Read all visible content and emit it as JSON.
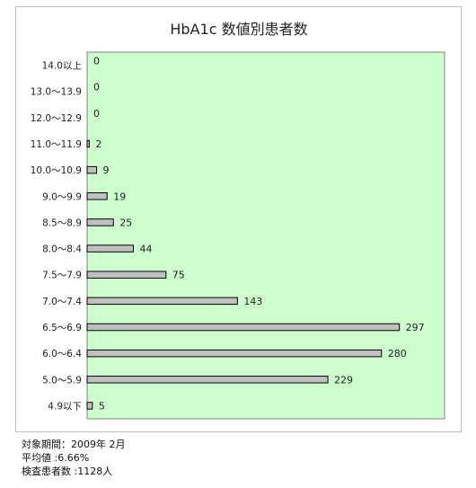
{
  "chart_data": {
    "type": "bar",
    "orientation": "horizontal",
    "title": "HbA1c 数値別患者数",
    "categories": [
      "14.0以上",
      "13.0～13.9",
      "12.0～12.9",
      "11.0～11.9",
      "10.0～10.9",
      "9.0～9.9",
      "8.5～8.9",
      "8.0～8.4",
      "7.5～7.9",
      "7.0～7.4",
      "6.5～6.9",
      "6.0～6.4",
      "5.0～5.9",
      "4.9以下"
    ],
    "values": [
      0,
      0,
      0,
      2,
      9,
      19,
      25,
      44,
      75,
      143,
      297,
      280,
      229,
      5
    ],
    "xlim": [
      0,
      340
    ],
    "grid": false,
    "legend": "none",
    "data_labels": true,
    "colors": {
      "plot_background": "#ccffcc",
      "bar_fill": "#c0c0c0",
      "bar_stroke": "#000000",
      "frame": "#bdbdbd"
    }
  },
  "notes": {
    "period": "対象期間：2009年 2月",
    "average": "平均値 :6.66%",
    "patients": "検査患者数 :1128人"
  }
}
